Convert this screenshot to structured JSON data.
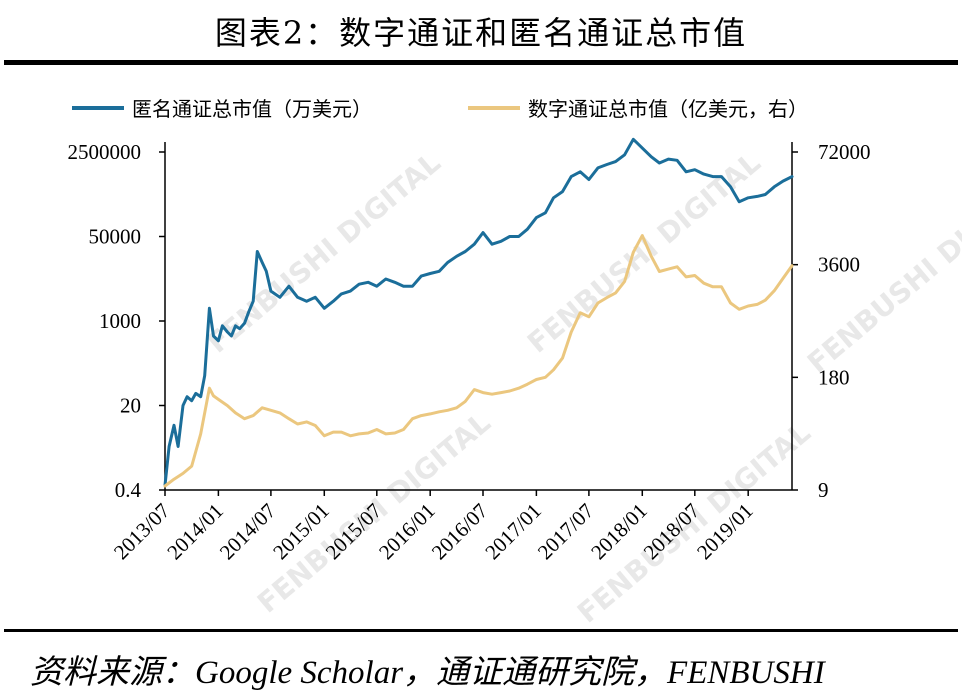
{
  "title": "图表2：数字通证和匿名通证总市值",
  "source": "资料来源：Google Scholar，通证通研究院，FENBUSHI",
  "watermark": "FENBUSHI DIGITAL",
  "chart_data": {
    "type": "line",
    "legend_position": "top",
    "grid": false,
    "x": [
      "2013/07",
      "2014/01",
      "2014/07",
      "2015/01",
      "2015/07",
      "2016/01",
      "2016/07",
      "2017/01",
      "2017/07",
      "2018/01",
      "2018/07",
      "2019/01"
    ],
    "x_range": [
      "2013/07",
      "2019/06"
    ],
    "left_axis": {
      "scale": "log",
      "ticks": [
        "0.4",
        "20",
        "1000",
        "50000",
        "2500000"
      ],
      "range": [
        0.4,
        2500000
      ]
    },
    "right_axis": {
      "scale": "log",
      "ticks": [
        "9",
        "180",
        "3600",
        "72000"
      ],
      "range": [
        9,
        72000
      ]
    },
    "series": [
      {
        "name": "匿名通证总市值（万美元）",
        "axis": "left",
        "color": "#1b6e9a",
        "points": [
          [
            "2013-07-01",
            0.5
          ],
          [
            "2013-07-15",
            3
          ],
          [
            "2013-08-01",
            8
          ],
          [
            "2013-08-15",
            3
          ],
          [
            "2013-09-01",
            20
          ],
          [
            "2013-09-15",
            30
          ],
          [
            "2013-10-01",
            25
          ],
          [
            "2013-10-15",
            35
          ],
          [
            "2013-11-01",
            30
          ],
          [
            "2013-11-15",
            80
          ],
          [
            "2013-12-01",
            1800
          ],
          [
            "2013-12-15",
            500
          ],
          [
            "2014-01-01",
            400
          ],
          [
            "2014-01-15",
            800
          ],
          [
            "2014-02-01",
            600
          ],
          [
            "2014-02-15",
            500
          ],
          [
            "2014-03-01",
            800
          ],
          [
            "2014-03-15",
            700
          ],
          [
            "2014-04-01",
            900
          ],
          [
            "2014-04-15",
            1500
          ],
          [
            "2014-05-01",
            2500
          ],
          [
            "2014-05-15",
            25000
          ],
          [
            "2014-06-01",
            15000
          ],
          [
            "2014-06-15",
            10000
          ],
          [
            "2014-07-01",
            4000
          ],
          [
            "2014-08-01",
            3000
          ],
          [
            "2014-09-01",
            5000
          ],
          [
            "2014-10-01",
            3000
          ],
          [
            "2014-11-01",
            2500
          ],
          [
            "2014-12-01",
            3000
          ],
          [
            "2015-01-01",
            1800
          ],
          [
            "2015-02-01",
            2500
          ],
          [
            "2015-03-01",
            3500
          ],
          [
            "2015-04-01",
            4000
          ],
          [
            "2015-05-01",
            5500
          ],
          [
            "2015-06-01",
            6000
          ],
          [
            "2015-07-01",
            5000
          ],
          [
            "2015-08-01",
            7000
          ],
          [
            "2015-09-01",
            6000
          ],
          [
            "2015-10-01",
            5000
          ],
          [
            "2015-11-01",
            5000
          ],
          [
            "2015-12-01",
            8000
          ],
          [
            "2016-01-01",
            9000
          ],
          [
            "2016-02-01",
            10000
          ],
          [
            "2016-03-01",
            15000
          ],
          [
            "2016-04-01",
            20000
          ],
          [
            "2016-05-01",
            25000
          ],
          [
            "2016-06-01",
            35000
          ],
          [
            "2016-07-01",
            60000
          ],
          [
            "2016-08-01",
            35000
          ],
          [
            "2016-09-01",
            40000
          ],
          [
            "2016-10-01",
            50000
          ],
          [
            "2016-11-01",
            50000
          ],
          [
            "2016-12-01",
            70000
          ],
          [
            "2017-01-01",
            120000
          ],
          [
            "2017-02-01",
            150000
          ],
          [
            "2017-03-01",
            300000
          ],
          [
            "2017-04-01",
            400000
          ],
          [
            "2017-05-01",
            800000
          ],
          [
            "2017-06-01",
            1000000
          ],
          [
            "2017-07-01",
            700000
          ],
          [
            "2017-08-01",
            1200000
          ],
          [
            "2017-09-01",
            1400000
          ],
          [
            "2017-10-01",
            1600000
          ],
          [
            "2017-11-01",
            2200000
          ],
          [
            "2017-12-01",
            4500000
          ],
          [
            "2018-01-01",
            3000000
          ],
          [
            "2018-02-01",
            2000000
          ],
          [
            "2018-03-01",
            1500000
          ],
          [
            "2018-04-01",
            1800000
          ],
          [
            "2018-05-01",
            1700000
          ],
          [
            "2018-06-01",
            1000000
          ],
          [
            "2018-07-01",
            1100000
          ],
          [
            "2018-08-01",
            900000
          ],
          [
            "2018-09-01",
            800000
          ],
          [
            "2018-10-01",
            800000
          ],
          [
            "2018-11-01",
            500000
          ],
          [
            "2018-12-01",
            250000
          ],
          [
            "2019-01-01",
            300000
          ],
          [
            "2019-02-01",
            320000
          ],
          [
            "2019-03-01",
            350000
          ],
          [
            "2019-04-01",
            500000
          ],
          [
            "2019-05-01",
            650000
          ],
          [
            "2019-06-01",
            800000
          ]
        ]
      },
      {
        "name": "数字通证总市值（亿美元，右）",
        "axis": "right",
        "color": "#ebc77f",
        "points": [
          [
            "2013-07-01",
            10
          ],
          [
            "2013-08-01",
            12
          ],
          [
            "2013-09-01",
            14
          ],
          [
            "2013-10-01",
            17
          ],
          [
            "2013-11-01",
            40
          ],
          [
            "2013-12-01",
            135
          ],
          [
            "2013-12-15",
            110
          ],
          [
            "2014-01-01",
            100
          ],
          [
            "2014-02-01",
            85
          ],
          [
            "2014-03-01",
            70
          ],
          [
            "2014-04-01",
            60
          ],
          [
            "2014-05-01",
            65
          ],
          [
            "2014-06-01",
            80
          ],
          [
            "2014-07-01",
            75
          ],
          [
            "2014-08-01",
            70
          ],
          [
            "2014-09-01",
            60
          ],
          [
            "2014-10-01",
            52
          ],
          [
            "2014-11-01",
            55
          ],
          [
            "2014-12-01",
            50
          ],
          [
            "2015-01-01",
            38
          ],
          [
            "2015-02-01",
            42
          ],
          [
            "2015-03-01",
            42
          ],
          [
            "2015-04-01",
            38
          ],
          [
            "2015-05-01",
            40
          ],
          [
            "2015-06-01",
            41
          ],
          [
            "2015-07-01",
            45
          ],
          [
            "2015-08-01",
            40
          ],
          [
            "2015-09-01",
            41
          ],
          [
            "2015-10-01",
            45
          ],
          [
            "2015-11-01",
            60
          ],
          [
            "2015-12-01",
            65
          ],
          [
            "2016-01-01",
            68
          ],
          [
            "2016-02-01",
            72
          ],
          [
            "2016-03-01",
            75
          ],
          [
            "2016-04-01",
            80
          ],
          [
            "2016-05-01",
            95
          ],
          [
            "2016-06-01",
            130
          ],
          [
            "2016-07-01",
            120
          ],
          [
            "2016-08-01",
            115
          ],
          [
            "2016-09-01",
            120
          ],
          [
            "2016-10-01",
            125
          ],
          [
            "2016-11-01",
            135
          ],
          [
            "2016-12-01",
            150
          ],
          [
            "2017-01-01",
            170
          ],
          [
            "2017-02-01",
            180
          ],
          [
            "2017-03-01",
            220
          ],
          [
            "2017-04-01",
            300
          ],
          [
            "2017-05-01",
            600
          ],
          [
            "2017-06-01",
            1000
          ],
          [
            "2017-07-01",
            900
          ],
          [
            "2017-08-01",
            1300
          ],
          [
            "2017-09-01",
            1500
          ],
          [
            "2017-10-01",
            1700
          ],
          [
            "2017-11-01",
            2300
          ],
          [
            "2017-12-01",
            5000
          ],
          [
            "2018-01-01",
            7800
          ],
          [
            "2018-02-01",
            4500
          ],
          [
            "2018-03-01",
            3000
          ],
          [
            "2018-04-01",
            3200
          ],
          [
            "2018-05-01",
            3400
          ],
          [
            "2018-06-01",
            2600
          ],
          [
            "2018-07-01",
            2700
          ],
          [
            "2018-08-01",
            2200
          ],
          [
            "2018-09-01",
            2000
          ],
          [
            "2018-10-01",
            2000
          ],
          [
            "2018-11-01",
            1300
          ],
          [
            "2018-12-01",
            1100
          ],
          [
            "2019-01-01",
            1200
          ],
          [
            "2019-02-01",
            1250
          ],
          [
            "2019-03-01",
            1400
          ],
          [
            "2019-04-01",
            1800
          ],
          [
            "2019-05-01",
            2500
          ],
          [
            "2019-06-01",
            3500
          ]
        ]
      }
    ]
  }
}
